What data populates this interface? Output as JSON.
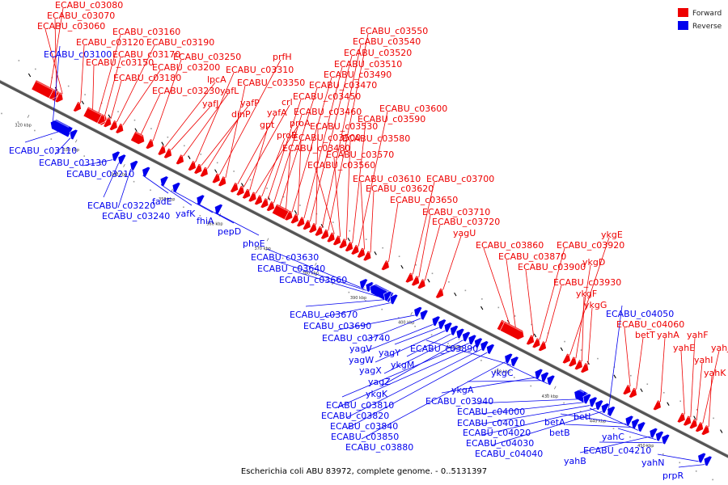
{
  "title": "Escherichia coli ABU 83972, complete genome. - 0..5131397",
  "colors": {
    "forward": "#ee0000",
    "reverse": "#0000ee",
    "axis": "#555555",
    "bg": "#ffffff"
  },
  "legend": [
    {
      "key": "forward",
      "label": "Forward"
    },
    {
      "key": "reverse",
      "label": "Reverse"
    }
  ],
  "ticks": [
    "320 kbp",
    "330 kbp",
    "340 kbp",
    "350 kbp",
    "360 kbp",
    "370 kbp",
    "380 kbp",
    "390 kbp",
    "400 kbp",
    "410 kbp",
    "420 kbp",
    "430 kbp",
    "440 kbp",
    "450 kbp"
  ],
  "genes": [
    {
      "name": "ECABU_c03080",
      "strand": "forward"
    },
    {
      "name": "ECABU_c03070",
      "strand": "forward"
    },
    {
      "name": "ECABU_c03060",
      "strand": "forward"
    },
    {
      "name": "ECABU_c03100",
      "strand": "reverse"
    },
    {
      "name": "ECABU_c03110",
      "strand": "reverse"
    },
    {
      "name": "ECABU_c03120",
      "strand": "forward"
    },
    {
      "name": "ECABU_c03130",
      "strand": "reverse"
    },
    {
      "name": "ECABU_c03150",
      "strand": "forward"
    },
    {
      "name": "ECABU_c03160",
      "strand": "forward"
    },
    {
      "name": "ECABU_c03170",
      "strand": "forward"
    },
    {
      "name": "ECABU_c03180",
      "strand": "forward"
    },
    {
      "name": "ECABU_c03190",
      "strand": "forward"
    },
    {
      "name": "ECABU_c03200",
      "strand": "forward"
    },
    {
      "name": "ECABU_c03210",
      "strand": "reverse"
    },
    {
      "name": "ECABU_c03220",
      "strand": "reverse"
    },
    {
      "name": "ECABU_c03230",
      "strand": "forward"
    },
    {
      "name": "ECABU_c03240",
      "strand": "reverse"
    },
    {
      "name": "ECABU_c03250",
      "strand": "forward"
    },
    {
      "name": "fadE",
      "strand": "reverse"
    },
    {
      "name": "lpcA",
      "strand": "forward"
    },
    {
      "name": "yafJ",
      "strand": "forward"
    },
    {
      "name": "yafK",
      "strand": "reverse"
    },
    {
      "name": "yafL",
      "strand": "forward"
    },
    {
      "name": "fhiA",
      "strand": "reverse"
    },
    {
      "name": "ECABU_c03310",
      "strand": "forward"
    },
    {
      "name": "yafP",
      "strand": "forward"
    },
    {
      "name": "dinP",
      "strand": "forward"
    },
    {
      "name": "pepD",
      "strand": "reverse"
    },
    {
      "name": "prfH",
      "strand": "forward"
    },
    {
      "name": "ECABU_c03350",
      "strand": "forward"
    },
    {
      "name": "phoE",
      "strand": "reverse"
    },
    {
      "name": "yafA",
      "strand": "forward"
    },
    {
      "name": "crl",
      "strand": "forward"
    },
    {
      "name": "gpt",
      "strand": "forward"
    },
    {
      "name": "proA",
      "strand": "forward"
    },
    {
      "name": "proB",
      "strand": "forward"
    },
    {
      "name": "ECABU_c03450",
      "strand": "forward"
    },
    {
      "name": "ECABU_c03460",
      "strand": "forward"
    },
    {
      "name": "ECABU_c03470",
      "strand": "forward"
    },
    {
      "name": "ECABU_c03480",
      "strand": "forward"
    },
    {
      "name": "ECABU_c03490",
      "strand": "forward"
    },
    {
      "name": "ECABU_c03500",
      "strand": "forward"
    },
    {
      "name": "ECABU_c03510",
      "strand": "forward"
    },
    {
      "name": "ECABU_c03520",
      "strand": "forward"
    },
    {
      "name": "ECABU_c03530",
      "strand": "forward"
    },
    {
      "name": "ECABU_c03540",
      "strand": "forward"
    },
    {
      "name": "ECABU_c03550",
      "strand": "forward"
    },
    {
      "name": "ECABU_c03560",
      "strand": "forward"
    },
    {
      "name": "ECABU_c03570",
      "strand": "forward"
    },
    {
      "name": "ECABU_c03580",
      "strand": "forward"
    },
    {
      "name": "ECABU_c03590",
      "strand": "forward"
    },
    {
      "name": "ECABU_c03600",
      "strand": "forward"
    },
    {
      "name": "ECABU_c03610",
      "strand": "forward"
    },
    {
      "name": "ECABU_c03620",
      "strand": "forward"
    },
    {
      "name": "ECABU_c03630",
      "strand": "reverse"
    },
    {
      "name": "ECABU_c03640",
      "strand": "reverse"
    },
    {
      "name": "ECABU_c03650",
      "strand": "forward"
    },
    {
      "name": "ECABU_c03660",
      "strand": "reverse"
    },
    {
      "name": "ECABU_c03670",
      "strand": "reverse"
    },
    {
      "name": "ECABU_c03690",
      "strand": "reverse"
    },
    {
      "name": "ECABU_c03700",
      "strand": "forward"
    },
    {
      "name": "ECABU_c03710",
      "strand": "forward"
    },
    {
      "name": "ECABU_c03720",
      "strand": "forward"
    },
    {
      "name": "ECABU_c03740",
      "strand": "reverse"
    },
    {
      "name": "yagV",
      "strand": "reverse"
    },
    {
      "name": "yagU",
      "strand": "forward"
    },
    {
      "name": "yagW",
      "strand": "reverse"
    },
    {
      "name": "yagY",
      "strand": "reverse"
    },
    {
      "name": "yagX",
      "strand": "reverse"
    },
    {
      "name": "ykgM",
      "strand": "reverse"
    },
    {
      "name": "yagZ",
      "strand": "reverse"
    },
    {
      "name": "ykgK",
      "strand": "reverse"
    },
    {
      "name": "ECABU_c03810",
      "strand": "reverse"
    },
    {
      "name": "ECABU_c03820",
      "strand": "reverse"
    },
    {
      "name": "ECABU_c03840",
      "strand": "reverse"
    },
    {
      "name": "ECABU_c03850",
      "strand": "reverse"
    },
    {
      "name": "ECABU_c03860",
      "strand": "forward"
    },
    {
      "name": "ECABU_c03870",
      "strand": "forward"
    },
    {
      "name": "ECABU_c03880",
      "strand": "reverse"
    },
    {
      "name": "ECABU_c03890",
      "strand": "reverse"
    },
    {
      "name": "ECABU_c03900",
      "strand": "forward"
    },
    {
      "name": "ECABU_c03920",
      "strand": "forward"
    },
    {
      "name": "ECABU_c03930",
      "strand": "forward"
    },
    {
      "name": "ECABU_c03940",
      "strand": "reverse"
    },
    {
      "name": "ykgA",
      "strand": "reverse"
    },
    {
      "name": "ykgC",
      "strand": "reverse"
    },
    {
      "name": "ykgE",
      "strand": "forward"
    },
    {
      "name": "ykgD",
      "strand": "forward"
    },
    {
      "name": "ykgF",
      "strand": "forward"
    },
    {
      "name": "ykgG",
      "strand": "forward"
    },
    {
      "name": "ECABU_c04000",
      "strand": "reverse"
    },
    {
      "name": "ECABU_c04010",
      "strand": "reverse"
    },
    {
      "name": "ECABU_c04020",
      "strand": "reverse"
    },
    {
      "name": "ECABU_c04030",
      "strand": "reverse"
    },
    {
      "name": "ECABU_c04040",
      "strand": "reverse"
    },
    {
      "name": "ECABU_c04050",
      "strand": "reverse"
    },
    {
      "name": "ECABU_c04060",
      "strand": "forward"
    },
    {
      "name": "betT",
      "strand": "forward"
    },
    {
      "name": "betA",
      "strand": "reverse"
    },
    {
      "name": "betB",
      "strand": "reverse"
    },
    {
      "name": "betI",
      "strand": "reverse"
    },
    {
      "name": "yahA",
      "strand": "forward"
    },
    {
      "name": "yahB",
      "strand": "reverse"
    },
    {
      "name": "yahC",
      "strand": "reverse"
    },
    {
      "name": "ECABU_c04210",
      "strand": "reverse"
    },
    {
      "name": "yahE",
      "strand": "forward"
    },
    {
      "name": "yahF",
      "strand": "forward"
    },
    {
      "name": "yahI",
      "strand": "forward"
    },
    {
      "name": "yahJ",
      "strand": "forward"
    },
    {
      "name": "yahK",
      "strand": "forward"
    },
    {
      "name": "yahN",
      "strand": "reverse"
    },
    {
      "name": "prpR",
      "strand": "reverse"
    }
  ]
}
